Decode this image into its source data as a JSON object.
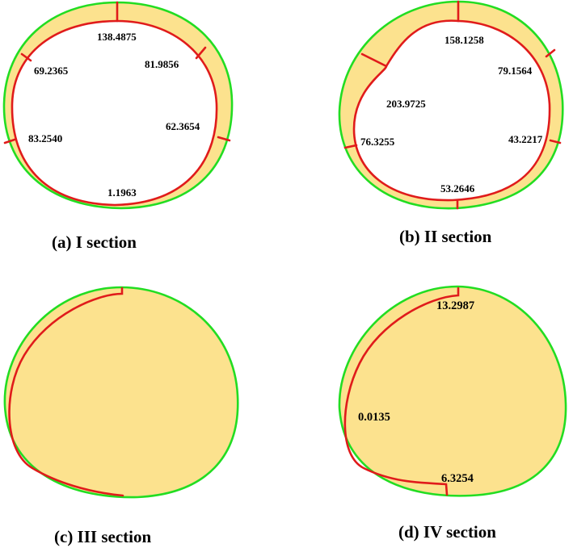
{
  "panels": [
    {
      "caption": "(a) I section",
      "values": [
        "138.4875",
        "81.9856",
        "69.2365",
        "62.3654",
        "83.2540",
        "1.1963"
      ]
    },
    {
      "caption": "(b) II section",
      "values": [
        "158.1258",
        "79.1564",
        "203.9725",
        "43.2217",
        "76.3255",
        "53.2646"
      ]
    },
    {
      "caption": "(c) III section",
      "values": []
    },
    {
      "caption": "(d) IV section",
      "values": [
        "13.2987",
        "0.0135",
        "6.3254"
      ]
    }
  ],
  "colors": {
    "ring_fill": "#FCE28E",
    "outer_boundary": "#22DD22",
    "inner_boundary": "#E01B1B",
    "background": "#FFFFFF"
  }
}
